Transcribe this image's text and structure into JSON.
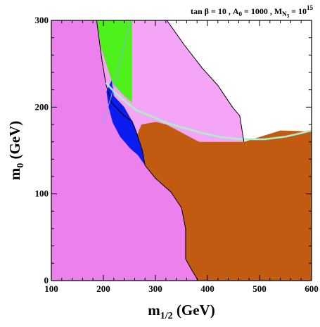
{
  "chart_data": {
    "type": "area",
    "title": "",
    "annotation": {
      "part1": "tan β = 10 ,  A",
      "sub1": "0",
      "part2": " = 1000 , M",
      "sub2": "N",
      "sub2b": "3",
      "part3": " = 10",
      "sup": "15"
    },
    "xlabel": {
      "main": "m",
      "sub": "1/2",
      "unit": " (GeV)"
    },
    "ylabel": {
      "main": "m",
      "sub": "0",
      "unit": " (GeV)"
    },
    "xlim": [
      100,
      600
    ],
    "ylim": [
      0,
      300
    ],
    "x_ticks": [
      100,
      200,
      300,
      400,
      500,
      600
    ],
    "y_ticks": [
      0,
      100,
      200,
      300
    ],
    "x_tick_labels": [
      "100",
      "200",
      "300",
      "400",
      "500",
      "600"
    ],
    "y_tick_labels": [
      "0",
      "100",
      "200",
      "300"
    ],
    "colors": {
      "background": "#ffffff",
      "magenta": "#ec80ec",
      "light_pink": "#f5a5f5",
      "green": "#4ef01a",
      "blue": "#0a1cf0",
      "brown": "#c35a12",
      "mint": "#a8f0c8",
      "thin_line": "#7ab4ea"
    },
    "regions": [
      {
        "name": "magenta-region",
        "color": "magenta",
        "points": [
          [
            100,
            0
          ],
          [
            100,
            300
          ],
          [
            187,
            300
          ],
          [
            197,
            255
          ],
          [
            205,
            226
          ],
          [
            216,
            205
          ],
          [
            240,
            190
          ],
          [
            255,
            184
          ],
          [
            265,
            168
          ],
          [
            275,
            150
          ],
          [
            280,
            133
          ],
          [
            300,
            118
          ],
          [
            330,
            102
          ],
          [
            350,
            84
          ],
          [
            358,
            60
          ],
          [
            358,
            25
          ],
          [
            370,
            12
          ],
          [
            382,
            0
          ]
        ]
      },
      {
        "name": "light-pink-region",
        "color": "light_pink",
        "points": [
          [
            187,
            300
          ],
          [
            322,
            300
          ],
          [
            355,
            272
          ],
          [
            390,
            245
          ],
          [
            420,
            225
          ],
          [
            448,
            200
          ],
          [
            462,
            190
          ],
          [
            470,
            160
          ],
          [
            384,
            160
          ],
          [
            321,
            180
          ],
          [
            301,
            183
          ],
          [
            273,
            180
          ],
          [
            265,
            168
          ],
          [
            255,
            184
          ],
          [
            240,
            190
          ],
          [
            216,
            205
          ],
          [
            205,
            226
          ],
          [
            197,
            255
          ]
        ]
      },
      {
        "name": "brown-region",
        "color": "brown",
        "points": [
          [
            382,
            0
          ],
          [
            370,
            12
          ],
          [
            358,
            25
          ],
          [
            358,
            60
          ],
          [
            350,
            84
          ],
          [
            330,
            102
          ],
          [
            300,
            118
          ],
          [
            280,
            133
          ],
          [
            275,
            150
          ],
          [
            265,
            168
          ],
          [
            273,
            180
          ],
          [
            301,
            183
          ],
          [
            321,
            180
          ],
          [
            384,
            160
          ],
          [
            470,
            160
          ],
          [
            540,
            173
          ],
          [
            600,
            172
          ],
          [
            600,
            0
          ]
        ]
      },
      {
        "name": "green-region",
        "color": "green",
        "points": [
          [
            187,
            300
          ],
          [
            255,
            300
          ],
          [
            255,
            205
          ],
          [
            240,
            213
          ],
          [
            218,
            227
          ],
          [
            208,
            245
          ],
          [
            196,
            268
          ]
        ]
      },
      {
        "name": "blue-region",
        "color": "blue",
        "points": [
          [
            216,
            231
          ],
          [
            220,
            213
          ],
          [
            240,
            200
          ],
          [
            255,
            184
          ],
          [
            260,
            178
          ],
          [
            266,
            168
          ],
          [
            275,
            150
          ],
          [
            280,
            133
          ],
          [
            266,
            145
          ],
          [
            252,
            152
          ],
          [
            232,
            166
          ],
          [
            218,
            182
          ],
          [
            210,
            200
          ],
          [
            206,
            218
          ]
        ]
      }
    ],
    "lines": [
      {
        "name": "mint-boundary-line",
        "color": "mint",
        "width": 2.6,
        "points": [
          [
            205,
            228
          ],
          [
            220,
            218
          ],
          [
            245,
            205
          ],
          [
            265,
            196
          ],
          [
            290,
            190
          ],
          [
            320,
            182
          ],
          [
            355,
            176
          ],
          [
            390,
            170
          ],
          [
            430,
            165
          ],
          [
            470,
            163
          ],
          [
            510,
            163
          ],
          [
            550,
            166
          ],
          [
            580,
            170
          ],
          [
            600,
            173
          ]
        ]
      },
      {
        "name": "thin-blue-line",
        "color": "thin_line",
        "width": 1,
        "points": [
          [
            251,
            300
          ],
          [
            235,
            260
          ],
          [
            214,
            210
          ],
          [
            198,
            180
          ]
        ]
      },
      {
        "name": "black-boundary-line",
        "color": "#000000",
        "width": 1,
        "points": [
          [
            322,
            300
          ],
          [
            355,
            272
          ],
          [
            390,
            245
          ],
          [
            420,
            225
          ],
          [
            448,
            200
          ],
          [
            462,
            190
          ],
          [
            470,
            160
          ]
        ]
      }
    ]
  }
}
